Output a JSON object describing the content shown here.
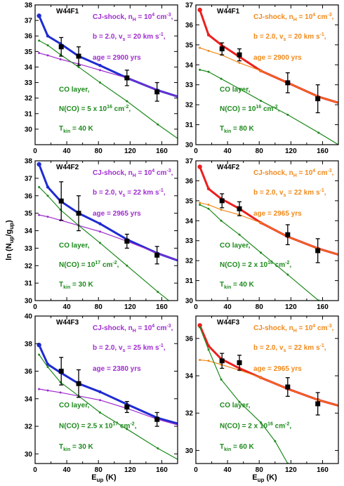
{
  "figure": {
    "ylabel": "ln (N",
    "ylabel_sub1": "up",
    "ylabel_mid": "/g",
    "ylabel_sub2": "up",
    "ylabel_end": ")",
    "xlabel": "E",
    "xlabel_sub": "up",
    "xlabel_unit": " (K)"
  },
  "colors": {
    "blue": "#1f2bd1",
    "red": "#ec1f1f",
    "purple": "#a02cd0",
    "orange": "#f08a1c",
    "green": "#1d8a1d",
    "black": "#000000"
  },
  "chart_data": [
    {
      "type": "line",
      "panel": "top-left",
      "label": "W44F1",
      "xlim": [
        0,
        180
      ],
      "ylim": [
        29,
        38
      ],
      "xticks": [
        "0",
        "40",
        "80",
        "120",
        "160"
      ],
      "yticks": [
        "30",
        "31",
        "32",
        "33",
        "34",
        "35",
        "36",
        "37",
        "38"
      ],
      "shock_color": "purple",
      "total_color": "blue",
      "shock_text": [
        "CJ-shock, n",
        "H",
        " = 10",
        "4",
        " cm",
        "-3",
        ","
      ],
      "shock_params": [
        "b = 2.0, v",
        "s",
        " = 20 km s",
        "-1",
        ","
      ],
      "shock_age": "age = 2900 yrs",
      "layer_title": "CO layer,",
      "layer_ncol": [
        "N(CO) = 5 x 10",
        "16",
        " cm",
        "-2",
        ","
      ],
      "layer_tkin": [
        "T",
        "kin",
        " = 40 K"
      ],
      "series": [
        {
          "role": "total",
          "x": [
            5,
            16,
            32,
            55,
            82,
            116,
            155,
            180
          ],
          "y": [
            37.3,
            36.0,
            35.5,
            34.7,
            34.1,
            33.3,
            32.5,
            32.1
          ]
        },
        {
          "role": "shock",
          "x": [
            5,
            16,
            32,
            55,
            82,
            116,
            155,
            180
          ],
          "y": [
            34.9,
            34.75,
            34.5,
            34.2,
            33.8,
            33.3,
            32.5,
            32.1
          ]
        },
        {
          "role": "layer",
          "x": [
            5,
            16,
            32,
            55,
            82,
            116,
            155,
            180
          ],
          "y": [
            35.7,
            35.4,
            34.8,
            34.0,
            33.0,
            31.8,
            30.3,
            29.4
          ]
        },
        {
          "role": "observed",
          "x": [
            33,
            55,
            116,
            154
          ],
          "y": [
            35.3,
            34.7,
            33.3,
            32.4
          ],
          "err": [
            0.6,
            0.6,
            0.5,
            0.6
          ]
        }
      ]
    },
    {
      "type": "line",
      "panel": "top-right",
      "label": "W44F1",
      "xlim": [
        0,
        180
      ],
      "ylim": [
        30,
        37
      ],
      "xticks": [
        "0",
        "40",
        "80",
        "120",
        "160"
      ],
      "yticks": [
        "30",
        "31",
        "32",
        "33",
        "34",
        "35",
        "36",
        "37"
      ],
      "shock_color": "orange",
      "total_color": "red",
      "shock_text": [
        "CJ-shock, n",
        "H",
        " = 10",
        "4",
        " cm",
        "-3",
        ","
      ],
      "shock_params": [
        "b = 2.0, v",
        "s",
        " = 20 km s",
        "-1",
        ","
      ],
      "shock_age": "age = 2900 yrs",
      "layer_title": "CO layer,",
      "layer_ncol": [
        "N(CO) = 10",
        "16",
        " cm",
        "-2",
        ","
      ],
      "layer_tkin": [
        "T",
        "kin",
        " = 80 K"
      ],
      "series": [
        {
          "role": "total",
          "x": [
            5,
            16,
            32,
            55,
            82,
            116,
            155,
            180
          ],
          "y": [
            36.75,
            35.5,
            35.0,
            34.4,
            33.7,
            33.1,
            32.4,
            32.1
          ]
        },
        {
          "role": "shock",
          "x": [
            5,
            16,
            32,
            55,
            82,
            116,
            155,
            180
          ],
          "y": [
            34.85,
            34.7,
            34.5,
            34.1,
            33.7,
            33.1,
            32.4,
            32.1
          ]
        },
        {
          "role": "layer",
          "x": [
            5,
            16,
            32,
            55,
            82,
            116,
            155,
            180
          ],
          "y": [
            33.75,
            33.65,
            33.3,
            32.8,
            32.2,
            31.5,
            30.6,
            30.0
          ]
        },
        {
          "role": "observed",
          "x": [
            33,
            55,
            116,
            154
          ],
          "y": [
            34.8,
            34.5,
            33.1,
            32.3
          ],
          "err": [
            0.3,
            0.3,
            0.5,
            0.7
          ]
        }
      ]
    },
    {
      "type": "line",
      "panel": "middle-left",
      "label": "W44F2",
      "xlim": [
        0,
        180
      ],
      "ylim": [
        30,
        38
      ],
      "xticks": [
        "0",
        "40",
        "80",
        "120",
        "160"
      ],
      "yticks": [
        "30",
        "31",
        "32",
        "33",
        "34",
        "35",
        "36",
        "37",
        "38"
      ],
      "shock_color": "purple",
      "total_color": "blue",
      "shock_text": [
        "CJ-shock, n",
        "H",
        " = 10",
        "4",
        " cm",
        "-3",
        ","
      ],
      "shock_params": [
        "b = 2.0, v",
        "s",
        " = 22 km s",
        "-1",
        ","
      ],
      "shock_age": "age = 2965 yrs",
      "layer_title": "CO layer,",
      "layer_ncol": [
        "N(CO) = 10",
        "17",
        " cm",
        "-2",
        ","
      ],
      "layer_tkin": [
        "T",
        "kin",
        " = 30 K"
      ],
      "series": [
        {
          "role": "total",
          "x": [
            5,
            16,
            32,
            55,
            82,
            116,
            155,
            180
          ],
          "y": [
            37.8,
            36.5,
            35.7,
            35.0,
            34.4,
            33.5,
            32.7,
            32.3
          ]
        },
        {
          "role": "shock",
          "x": [
            5,
            16,
            32,
            55,
            82,
            116,
            155,
            180
          ],
          "y": [
            34.9,
            34.8,
            34.6,
            34.3,
            33.95,
            33.4,
            32.7,
            32.3
          ]
        },
        {
          "role": "layer",
          "x": [
            5,
            16,
            32,
            55,
            82,
            116,
            155,
            180
          ],
          "y": [
            36.5,
            36.0,
            35.2,
            34.3,
            33.3,
            32.0,
            30.5,
            29.6
          ]
        },
        {
          "role": "observed",
          "x": [
            33,
            55,
            116,
            154
          ],
          "y": [
            35.7,
            35.0,
            33.4,
            32.6
          ],
          "err": [
            1.1,
            1.0,
            0.4,
            0.5
          ]
        }
      ]
    },
    {
      "type": "line",
      "panel": "middle-right",
      "label": "W44F2",
      "xlim": [
        0,
        180
      ],
      "ylim": [
        30,
        37
      ],
      "xticks": [
        "0",
        "40",
        "80",
        "120",
        "160"
      ],
      "yticks": [
        "30",
        "31",
        "32",
        "33",
        "34",
        "35",
        "36",
        "37"
      ],
      "shock_color": "orange",
      "total_color": "red",
      "shock_text": [
        "CJ-shock, n",
        "H",
        " = 10",
        "4",
        " cm",
        "-3",
        ","
      ],
      "shock_params": [
        "b = 2.0, v",
        "s",
        " = 22 km s",
        "-1",
        ","
      ],
      "shock_age": "age = 2965 yrs",
      "layer_title": "CO layer,",
      "layer_ncol": [
        "N(CO) = 2 x 10",
        "16",
        " cm",
        "-2",
        ","
      ],
      "layer_tkin": [
        "T",
        "kin",
        " = 40 K"
      ],
      "series": [
        {
          "role": "total",
          "x": [
            5,
            16,
            32,
            55,
            82,
            116,
            155,
            180
          ],
          "y": [
            36.7,
            35.6,
            35.1,
            34.6,
            33.9,
            33.2,
            32.6,
            32.3
          ]
        },
        {
          "role": "shock",
          "x": [
            5,
            16,
            32,
            55,
            82,
            116,
            155,
            180
          ],
          "y": [
            34.9,
            34.8,
            34.55,
            34.3,
            33.9,
            33.2,
            32.6,
            32.3
          ]
        },
        {
          "role": "layer",
          "x": [
            5,
            16,
            32,
            55,
            82,
            116,
            155,
            180
          ],
          "y": [
            34.8,
            34.6,
            34.0,
            33.3,
            32.4,
            31.3,
            30.0,
            29.2
          ]
        },
        {
          "role": "observed",
          "x": [
            33,
            55,
            116,
            154
          ],
          "y": [
            35.0,
            34.6,
            33.3,
            32.5
          ],
          "err": [
            0.35,
            0.35,
            0.5,
            0.6
          ]
        }
      ]
    },
    {
      "type": "line",
      "panel": "bottom-left",
      "label": "W44F3",
      "xlim": [
        0,
        180
      ],
      "ylim": [
        29.3,
        40
      ],
      "xticks": [
        "0",
        "40",
        "80",
        "120",
        "160"
      ],
      "yticks": [
        "30",
        "32",
        "34",
        "36",
        "38",
        "40"
      ],
      "shock_color": "purple",
      "total_color": "blue",
      "shock_text": [
        "CJ-shock, n",
        "H",
        " = 10",
        "4",
        " cm",
        "-3",
        ","
      ],
      "shock_params": [
        "b = 2.0, v",
        "s",
        " = 25 km s",
        "-1",
        ","
      ],
      "shock_age": "age = 2380 yrs",
      "layer_title": "CO layer,",
      "layer_ncol": [
        "N(CO) = 2.5 x 10",
        "17",
        " cm",
        "-2",
        ","
      ],
      "layer_tkin": [
        "T",
        "kin",
        " = 30 K"
      ],
      "series": [
        {
          "role": "total",
          "x": [
            5,
            16,
            32,
            55,
            82,
            116,
            155,
            180
          ],
          "y": [
            37.9,
            36.5,
            35.9,
            35.1,
            34.5,
            33.6,
            32.6,
            32.2
          ]
        },
        {
          "role": "shock",
          "x": [
            5,
            16,
            32,
            55,
            82,
            116,
            155,
            180
          ],
          "y": [
            34.7,
            34.6,
            34.45,
            34.2,
            33.9,
            33.3,
            32.5,
            32.1
          ]
        },
        {
          "role": "layer",
          "x": [
            5,
            16,
            32,
            55,
            82,
            116,
            155,
            180
          ],
          "y": [
            37.2,
            36.3,
            35.2,
            34.2,
            33.0,
            31.8,
            30.4,
            29.6
          ]
        },
        {
          "role": "observed",
          "x": [
            33,
            55,
            116,
            154
          ],
          "y": [
            36.0,
            35.1,
            33.4,
            32.5
          ],
          "err": [
            1.0,
            1.0,
            0.4,
            0.5
          ]
        }
      ]
    },
    {
      "type": "line",
      "panel": "bottom-right",
      "label": "W44F3",
      "xlim": [
        0,
        180
      ],
      "ylim": [
        29.3,
        37.2
      ],
      "xticks": [
        "0",
        "40",
        "80",
        "120",
        "160"
      ],
      "yticks": [
        "30",
        "32",
        "34",
        "36"
      ],
      "shock_color": "orange",
      "total_color": "red",
      "shock_text": [
        "CJ-shock, n",
        "H",
        " = 10",
        "4",
        " cm",
        "-3",
        ","
      ],
      "shock_params": [
        "b = 2.0, v",
        "s",
        " = 22 km s",
        "-1",
        ","
      ],
      "shock_age": "age = 2965 yrs",
      "layer_title": "CO layer,",
      "layer_ncol": [
        "N(CO) = 2 x 10",
        "16",
        " cm",
        "-2",
        ","
      ],
      "layer_tkin": [
        "T",
        "kin",
        " = 60 K"
      ],
      "series": [
        {
          "role": "total",
          "x": [
            5,
            16,
            32,
            55,
            82,
            116,
            155,
            180
          ],
          "y": [
            36.7,
            35.6,
            34.9,
            34.4,
            33.9,
            33.3,
            32.7,
            32.4
          ]
        },
        {
          "role": "shock",
          "x": [
            5,
            16,
            32,
            55,
            82,
            116,
            155,
            180
          ],
          "y": [
            34.85,
            34.8,
            34.6,
            34.3,
            33.9,
            33.3,
            32.7,
            32.4
          ]
        },
        {
          "role": "layer",
          "x": [
            5,
            16,
            32,
            55,
            82,
            100,
            116,
            130
          ],
          "y": [
            36.6,
            35.4,
            33.8,
            32.6,
            31.5,
            30.5,
            29.3,
            28.0
          ]
        },
        {
          "role": "observed",
          "x": [
            33,
            55,
            116,
            154
          ],
          "y": [
            34.8,
            34.7,
            33.4,
            32.5
          ],
          "err": [
            0.4,
            0.4,
            0.5,
            0.6
          ]
        }
      ]
    }
  ]
}
